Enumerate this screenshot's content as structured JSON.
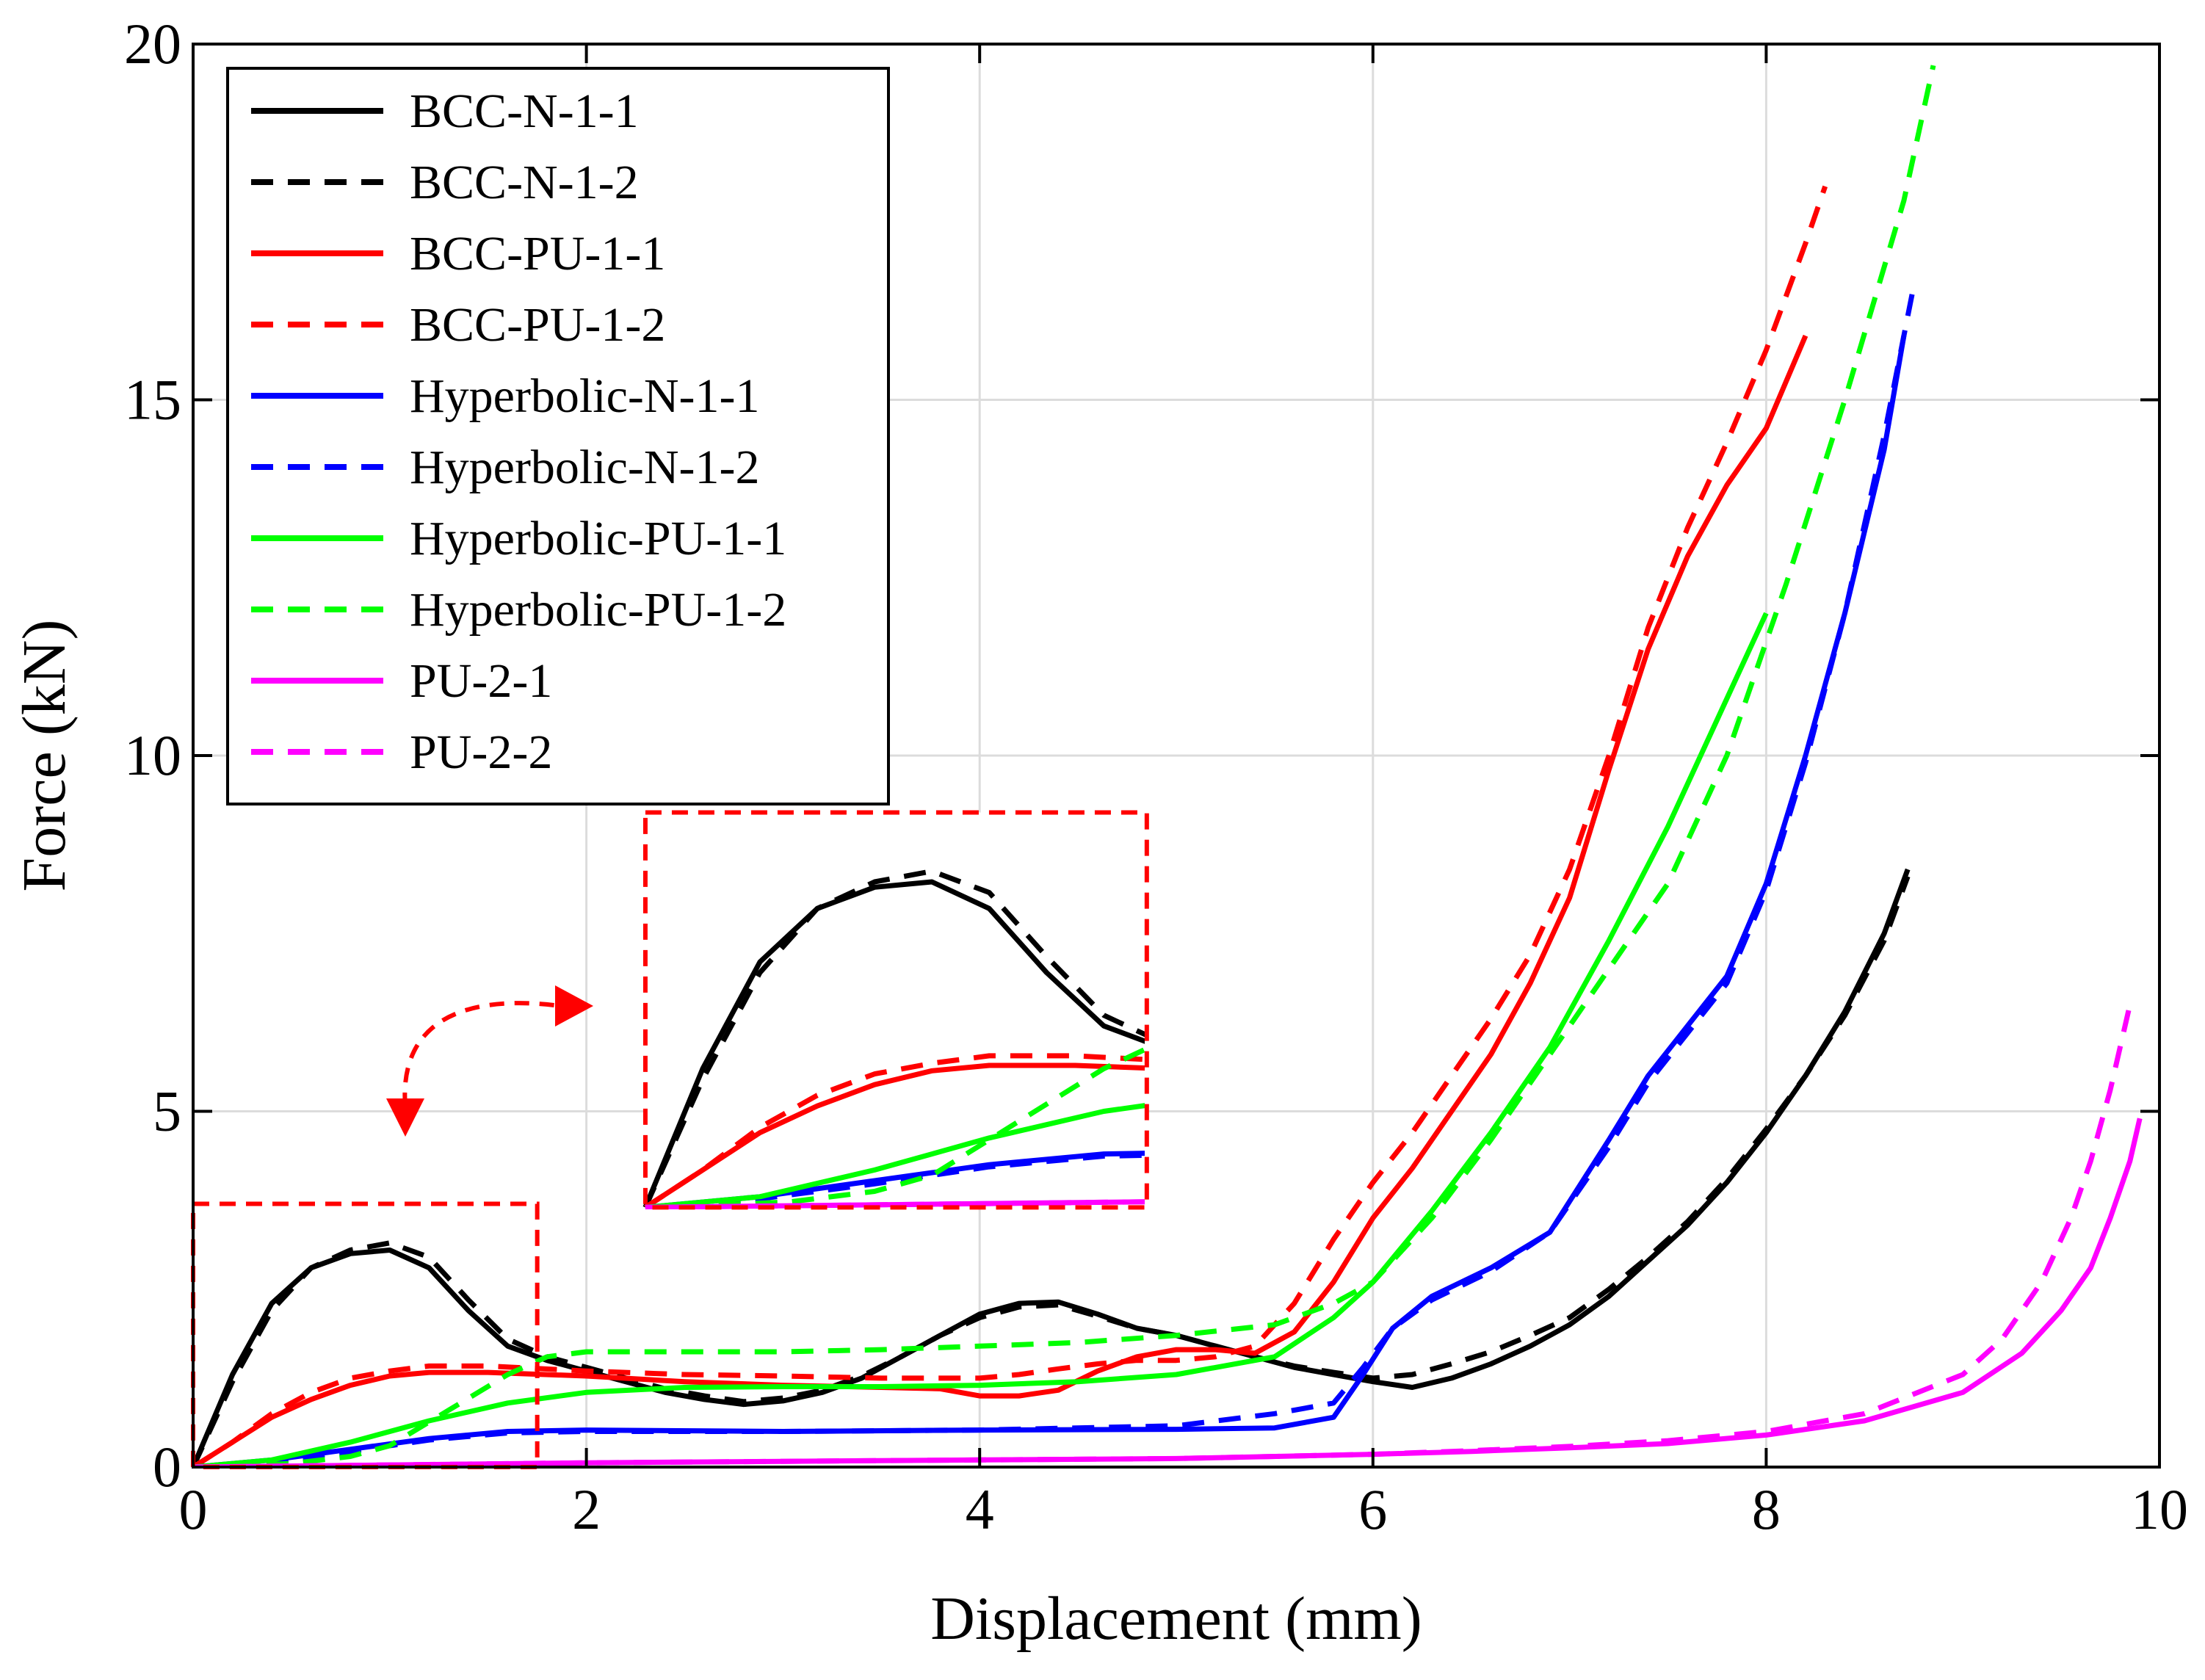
{
  "chart_data": {
    "type": "line",
    "xlabel": "Displacement (mm)",
    "ylabel": "Force (kN)",
    "xlim": [
      0,
      10
    ],
    "ylim": [
      0,
      20
    ],
    "xticks": [
      "0",
      "2",
      "4",
      "6",
      "8",
      "10"
    ],
    "yticks": [
      "0",
      "5",
      "10",
      "15",
      "20"
    ],
    "grid": true,
    "legend_position": "top-left",
    "inset": {
      "source_region": {
        "x": [
          0,
          1.75
        ],
        "y": [
          0,
          3.7
        ]
      },
      "display_region": {
        "x": [
          2.3,
          4.85
        ],
        "y": [
          3.65,
          9.2
        ]
      },
      "box_color": "#ff0000"
    },
    "series": [
      {
        "name": "BCC-N-1-1",
        "color": "#000000",
        "dash": "solid",
        "x": [
          0,
          0.2,
          0.4,
          0.6,
          0.8,
          1.0,
          1.2,
          1.4,
          1.6,
          1.8,
          2.0,
          2.2,
          2.4,
          2.6,
          2.8,
          3.0,
          3.2,
          3.4,
          3.6,
          3.8,
          4.0,
          4.2,
          4.4,
          4.6,
          4.8,
          5.0,
          5.2,
          5.4,
          5.6,
          5.8,
          6.0,
          6.2,
          6.4,
          6.6,
          6.8,
          7.0,
          7.2,
          7.4,
          7.6,
          7.8,
          8.0,
          8.2,
          8.4,
          8.6,
          8.72
        ],
        "y": [
          0,
          1.3,
          2.3,
          2.8,
          3.0,
          3.05,
          2.8,
          2.2,
          1.7,
          1.5,
          1.35,
          1.2,
          1.05,
          0.95,
          0.88,
          0.93,
          1.05,
          1.25,
          1.55,
          1.85,
          2.15,
          2.3,
          2.32,
          2.15,
          1.95,
          1.85,
          1.7,
          1.55,
          1.4,
          1.3,
          1.2,
          1.12,
          1.25,
          1.45,
          1.7,
          2.0,
          2.4,
          2.9,
          3.4,
          4.0,
          4.7,
          5.5,
          6.4,
          7.5,
          8.4
        ]
      },
      {
        "name": "BCC-N-1-2",
        "color": "#000000",
        "dash": "dash",
        "x": [
          0,
          0.2,
          0.4,
          0.6,
          0.8,
          1.0,
          1.2,
          1.4,
          1.6,
          1.8,
          2.0,
          2.2,
          2.4,
          2.6,
          2.8,
          3.0,
          3.2,
          3.4,
          3.6,
          3.8,
          4.0,
          4.2,
          4.4,
          4.6,
          4.8,
          5.0,
          5.2,
          5.4,
          5.6,
          5.8,
          6.0,
          6.2,
          6.4,
          6.6,
          6.8,
          7.0,
          7.2,
          7.4,
          7.6,
          7.8,
          8.0,
          8.2,
          8.4,
          8.6,
          8.72
        ],
        "y": [
          0,
          1.2,
          2.2,
          2.8,
          3.05,
          3.15,
          2.95,
          2.35,
          1.8,
          1.55,
          1.4,
          1.25,
          1.1,
          1.0,
          0.92,
          0.97,
          1.08,
          1.28,
          1.55,
          1.85,
          2.1,
          2.25,
          2.28,
          2.12,
          1.95,
          1.85,
          1.7,
          1.55,
          1.42,
          1.33,
          1.25,
          1.3,
          1.45,
          1.62,
          1.85,
          2.1,
          2.5,
          2.95,
          3.45,
          4.05,
          4.75,
          5.5,
          6.35,
          7.4,
          8.3
        ]
      },
      {
        "name": "BCC-PU-1-1",
        "color": "#ff0000",
        "dash": "solid",
        "x": [
          0,
          0.2,
          0.4,
          0.6,
          0.8,
          1.0,
          1.2,
          1.5,
          2.0,
          2.5,
          3.0,
          3.5,
          3.8,
          4.0,
          4.2,
          4.4,
          4.6,
          4.8,
          5.0,
          5.2,
          5.4,
          5.6,
          5.8,
          6.0,
          6.2,
          6.4,
          6.6,
          6.8,
          7.0,
          7.2,
          7.4,
          7.6,
          7.8,
          8.0,
          8.2
        ],
        "y": [
          0,
          0.35,
          0.7,
          0.95,
          1.15,
          1.28,
          1.33,
          1.33,
          1.28,
          1.2,
          1.15,
          1.12,
          1.1,
          1.0,
          1.0,
          1.08,
          1.35,
          1.55,
          1.65,
          1.65,
          1.6,
          1.9,
          2.6,
          3.5,
          4.2,
          5.0,
          5.8,
          6.8,
          8.0,
          9.8,
          11.5,
          12.8,
          13.8,
          14.6,
          15.9
        ]
      },
      {
        "name": "BCC-PU-1-2",
        "color": "#ff0000",
        "dash": "dash",
        "x": [
          0,
          0.2,
          0.4,
          0.6,
          0.8,
          1.0,
          1.2,
          1.5,
          2.0,
          2.5,
          3.0,
          3.5,
          4.0,
          4.2,
          4.4,
          4.6,
          4.8,
          5.0,
          5.2,
          5.4,
          5.6,
          5.8,
          6.0,
          6.2,
          6.4,
          6.6,
          6.8,
          7.0,
          7.2,
          7.4,
          7.6,
          7.8,
          8.0,
          8.2,
          8.3
        ],
        "y": [
          0,
          0.35,
          0.75,
          1.05,
          1.25,
          1.35,
          1.42,
          1.42,
          1.35,
          1.3,
          1.28,
          1.25,
          1.25,
          1.3,
          1.38,
          1.45,
          1.5,
          1.5,
          1.55,
          1.7,
          2.3,
          3.2,
          4.0,
          4.7,
          5.5,
          6.3,
          7.2,
          8.4,
          10.0,
          11.8,
          13.2,
          14.4,
          15.7,
          17.2,
          18.0
        ]
      },
      {
        "name": "Hyperbolic-N-1-1",
        "color": "#0000ff",
        "dash": "solid",
        "x": [
          0,
          0.4,
          0.8,
          1.2,
          1.6,
          2.0,
          3.0,
          4.0,
          5.0,
          5.5,
          5.8,
          5.95,
          6.1,
          6.3,
          6.6,
          6.9,
          7.2,
          7.4,
          7.6,
          7.8,
          8.0,
          8.2,
          8.4,
          8.6,
          8.7
        ],
        "y": [
          0,
          0.1,
          0.25,
          0.4,
          0.5,
          0.52,
          0.5,
          0.52,
          0.53,
          0.55,
          0.7,
          1.3,
          1.95,
          2.4,
          2.8,
          3.3,
          4.6,
          5.5,
          6.2,
          6.9,
          8.2,
          10.0,
          12.0,
          14.3,
          15.9
        ]
      },
      {
        "name": "Hyperbolic-N-1-2",
        "color": "#0000ff",
        "dash": "dash",
        "x": [
          0,
          0.4,
          0.8,
          1.2,
          1.6,
          2.0,
          3.0,
          4.0,
          5.0,
          5.5,
          5.8,
          5.95,
          6.1,
          6.3,
          6.6,
          6.9,
          7.2,
          7.4,
          7.6,
          7.8,
          8.0,
          8.2,
          8.4,
          8.6,
          8.75
        ],
        "y": [
          0,
          0.08,
          0.22,
          0.38,
          0.48,
          0.5,
          0.5,
          0.52,
          0.58,
          0.75,
          0.9,
          1.4,
          1.95,
          2.35,
          2.75,
          3.3,
          4.5,
          5.4,
          6.1,
          6.8,
          8.1,
          9.9,
          12.0,
          14.5,
          16.6
        ]
      },
      {
        "name": "Hyperbolic-PU-1-1",
        "color": "#00ff00",
        "dash": "solid",
        "x": [
          0,
          0.4,
          0.8,
          1.2,
          1.6,
          2.0,
          2.5,
          3.0,
          3.5,
          4.0,
          4.5,
          5.0,
          5.5,
          5.8,
          6.0,
          6.3,
          6.6,
          6.9,
          7.2,
          7.5,
          7.8,
          8.0
        ],
        "y": [
          0,
          0.1,
          0.35,
          0.65,
          0.9,
          1.05,
          1.12,
          1.13,
          1.13,
          1.15,
          1.2,
          1.3,
          1.55,
          2.1,
          2.6,
          3.6,
          4.7,
          5.9,
          7.4,
          9.0,
          10.8,
          12.0
        ]
      },
      {
        "name": "Hyperbolic-PU-1-2",
        "color": "#00ff00",
        "dash": "dash",
        "x": [
          0,
          0.5,
          0.8,
          1.0,
          1.3,
          1.6,
          1.8,
          2.0,
          2.5,
          3.0,
          3.5,
          4.0,
          4.5,
          5.0,
          5.5,
          5.8,
          6.0,
          6.3,
          6.6,
          6.9,
          7.2,
          7.5,
          7.8,
          8.1,
          8.4,
          8.7,
          8.85
        ],
        "y": [
          0,
          0.05,
          0.15,
          0.3,
          0.8,
          1.3,
          1.55,
          1.62,
          1.62,
          1.62,
          1.65,
          1.7,
          1.75,
          1.85,
          2.0,
          2.3,
          2.6,
          3.5,
          4.6,
          5.8,
          7.0,
          8.2,
          10.0,
          12.4,
          15.0,
          17.8,
          19.7
        ]
      },
      {
        "name": "PU-2-1",
        "color": "#ff00ff",
        "dash": "solid",
        "x": [
          0,
          1,
          2,
          3,
          4,
          5,
          6,
          6.5,
          7,
          7.5,
          8,
          8.5,
          9.0,
          9.3,
          9.5,
          9.65,
          9.75,
          9.85,
          9.9
        ],
        "y": [
          0,
          0.03,
          0.06,
          0.08,
          0.1,
          0.12,
          0.18,
          0.22,
          0.27,
          0.33,
          0.45,
          0.65,
          1.05,
          1.6,
          2.2,
          2.8,
          3.5,
          4.3,
          4.9
        ]
      },
      {
        "name": "PU-2-2",
        "color": "#ff00ff",
        "dash": "dash",
        "x": [
          0,
          1,
          2,
          3,
          4,
          5,
          6,
          6.5,
          7,
          7.5,
          8,
          8.5,
          9.0,
          9.2,
          9.4,
          9.55,
          9.65,
          9.75,
          9.85
        ],
        "y": [
          0,
          0.03,
          0.06,
          0.08,
          0.1,
          0.12,
          0.18,
          0.23,
          0.29,
          0.37,
          0.5,
          0.75,
          1.3,
          1.8,
          2.6,
          3.5,
          4.3,
          5.3,
          6.5
        ]
      }
    ]
  }
}
